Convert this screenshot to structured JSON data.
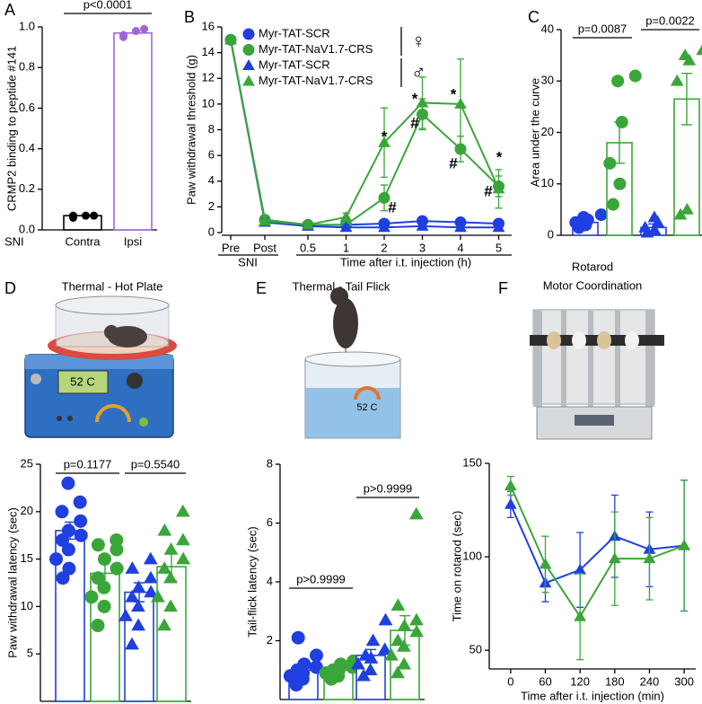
{
  "chart_data": [
    {
      "type": "bar",
      "label": "A",
      "ylabel": "CRMP2 binding to peptide #141",
      "group_label": "SNI",
      "categories": [
        "Contra",
        "Ipsi"
      ],
      "values": [
        0.07,
        0.97
      ],
      "points": [
        [
          0.06,
          0.07,
          0.07,
          0.07
        ],
        [
          0.95,
          0.98,
          0.96,
          0.99
        ]
      ],
      "colors": [
        "#000000",
        "#a066d8"
      ],
      "markers": [
        "circle",
        "circle"
      ],
      "ylim": [
        0,
        1.0
      ],
      "yticks": [
        {
          "value": 0,
          "label": "0.0"
        },
        0.2,
        0.4,
        0.6,
        0.8,
        {
          "value": 1,
          "label": "1.0"
        }
      ],
      "comparisons": [
        "p<0.0001"
      ]
    },
    {
      "type": "line",
      "label": "B",
      "ylabel": "Paw withdrawal threshold (g)",
      "group_label": "SNI",
      "xlabel": "Time after i.t. injection (h)",
      "categories": [
        "Pre",
        "Post",
        "0.5",
        "1",
        "2",
        "3",
        "4",
        "5"
      ],
      "legend_groups": [
        "♀",
        "♂"
      ],
      "series": [
        {
          "name": "Myr-TAT-SCR",
          "color": "#1f3fe0",
          "marker": "circle",
          "values": [
            15,
            1.0,
            0.6,
            0.6,
            0.7,
            0.9,
            0.8,
            0.7
          ],
          "errors": [
            0.2,
            0.3,
            0.2,
            0.2,
            0.3,
            0.3,
            0.3,
            0.3
          ]
        },
        {
          "name": "Myr-TAT-NaV1.7-CRS",
          "color": "#3aa639",
          "marker": "circle",
          "values": [
            15,
            1.0,
            0.6,
            0.6,
            2.7,
            9.2,
            6.5,
            3.6
          ],
          "errors": [
            0.2,
            0.3,
            0.2,
            0.2,
            1.0,
            1.2,
            1.0,
            0.8
          ]
        },
        {
          "name": "Myr-TAT-SCR",
          "color": "#1f3fe0",
          "marker": "triangle",
          "values": [
            15,
            0.8,
            0.5,
            0.4,
            0.4,
            0.5,
            0.4,
            0.4
          ],
          "errors": [
            0.2,
            0.3,
            0.2,
            0.2,
            0.2,
            0.2,
            0.2,
            0.2
          ]
        },
        {
          "name": "Myr-TAT-NaV1.7-CRS",
          "color": "#3aa639",
          "marker": "triangle",
          "values": [
            15,
            0.9,
            0.6,
            1.2,
            7.0,
            10.1,
            10.0,
            3.4
          ],
          "errors": [
            0.2,
            0.3,
            0.2,
            0.3,
            2.7,
            2.0,
            3.5,
            1.5
          ]
        }
      ],
      "annotations": [
        "*",
        "#",
        "*",
        "#",
        "*",
        "#",
        "*",
        "#"
      ],
      "ylim": [
        0,
        16
      ],
      "yticks": [
        0,
        2,
        4,
        6,
        8,
        10,
        12,
        14,
        16
      ]
    },
    {
      "type": "bar",
      "label": "C",
      "ylabel": "Area under the curve",
      "categories": [
        null,
        null,
        null,
        null
      ],
      "values": [
        2.5,
        18,
        1.5,
        26.5
      ],
      "errors": [
        0.6,
        4,
        0.7,
        5
      ],
      "points": [
        [
          1.5,
          2,
          2.5,
          3,
          3.5,
          4
        ],
        [
          6,
          10,
          14,
          22,
          30,
          31
        ],
        [
          0.5,
          1,
          1.5,
          2.5,
          3.5
        ],
        [
          4,
          5,
          30,
          34,
          35,
          36
        ]
      ],
      "colors": [
        "#1f3fe0",
        "#3aa639",
        "#1f3fe0",
        "#3aa639"
      ],
      "markers": [
        "circle",
        "circle",
        "triangle",
        "triangle"
      ],
      "ylim": [
        0,
        40
      ],
      "yticks": [
        0,
        10,
        20,
        30,
        40
      ],
      "comparisons": [
        "p=0.0087",
        "p=0.0022"
      ]
    },
    {
      "type": "bar",
      "label": "D",
      "title": "Thermal - Hot Plate",
      "illustration_text": "52 C",
      "ylabel": "Paw withdrawal latency (sec)",
      "categories": [
        null,
        null,
        null,
        null
      ],
      "values": [
        18,
        13.5,
        11.5,
        14.2
      ],
      "errors": [
        0.9,
        1.3,
        1.0,
        1.5
      ],
      "points": [
        [
          13,
          14,
          15,
          16,
          17,
          17.5,
          18,
          19,
          20,
          21,
          23
        ],
        [
          8,
          10,
          11,
          12,
          13,
          14,
          15,
          16,
          16.5,
          17
        ],
        [
          6,
          8,
          9,
          10,
          11,
          11.5,
          12,
          13,
          14,
          15
        ],
        [
          8,
          10,
          11,
          13,
          14,
          15,
          16,
          17,
          18,
          20
        ]
      ],
      "colors": [
        "#1f3fe0",
        "#3aa639",
        "#1f3fe0",
        "#3aa639"
      ],
      "markers": [
        "circle",
        "circle",
        "triangle",
        "triangle"
      ],
      "ylim": [
        0,
        25
      ],
      "yticks": [
        5,
        10,
        15,
        20,
        25
      ],
      "comparisons": [
        "p=0.1177",
        "p=0.5540"
      ]
    },
    {
      "type": "bar",
      "label": "E",
      "title": "Thermal - Tail Flick",
      "illustration_text": "52 C",
      "ylabel": "Tail-flick latency (sec)",
      "categories": [
        null,
        null,
        null,
        null
      ],
      "values": [
        1.0,
        1.0,
        1.5,
        2.35
      ],
      "errors": [
        0.15,
        0.1,
        0.2,
        0.5
      ],
      "points": [
        [
          0.5,
          0.7,
          0.8,
          0.9,
          1.0,
          1.1,
          1.2,
          1.5,
          2.1
        ],
        [
          0.7,
          0.8,
          0.9,
          1.0,
          1.0,
          1.1,
          1.2,
          1.3
        ],
        [
          0.8,
          1.0,
          1.2,
          1.4,
          1.5,
          1.7,
          2.0,
          2.7
        ],
        [
          0.9,
          1.2,
          1.5,
          1.8,
          2.0,
          2.3,
          2.5,
          2.7,
          3.2,
          6.3
        ]
      ],
      "colors": [
        "#1f3fe0",
        "#3aa639",
        "#1f3fe0",
        "#3aa639"
      ],
      "markers": [
        "circle",
        "circle",
        "triangle",
        "triangle"
      ],
      "ylim": [
        0,
        8
      ],
      "yticks": [
        2,
        4,
        6,
        8
      ],
      "comparisons": [
        "p>0.9999",
        "p>0.9999"
      ]
    },
    {
      "type": "line",
      "label": "F",
      "title": [
        "Rotarod",
        "Motor Coordination"
      ],
      "ylabel": "Time on rotarod (sec)",
      "xlabel": "Time after i.t. injection (min)",
      "x": [
        0,
        60,
        120,
        180,
        240,
        300
      ],
      "series": [
        {
          "color": "#1f3fe0",
          "marker": "triangle",
          "values": [
            128,
            86,
            93,
            111,
            104,
            106
          ],
          "errors": [
            7,
            10,
            20,
            22,
            20,
            35
          ]
        },
        {
          "color": "#3aa639",
          "marker": "triangle",
          "values": [
            138,
            96,
            68,
            99,
            99,
            106
          ],
          "errors": [
            5,
            15,
            23,
            25,
            22,
            35
          ]
        }
      ],
      "xlim": [
        -37,
        320
      ],
      "xticks": [
        0,
        60,
        120,
        180,
        240,
        300
      ],
      "ylim": [
        40,
        150
      ],
      "yticks": [
        50,
        100,
        150
      ]
    }
  ]
}
